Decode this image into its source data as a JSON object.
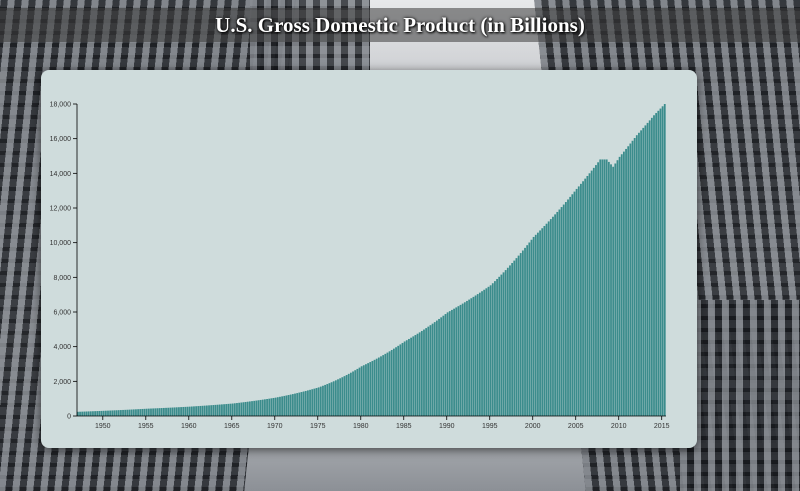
{
  "page": {
    "title": "U.S. Gross Domestic Product (in Billions)"
  },
  "colors": {
    "bar": "#3b8c8c",
    "card": "#cfdcdc",
    "axis": "#000000"
  },
  "chart_data": {
    "type": "bar",
    "title": "U.S. Gross Domestic Product (in Billions)",
    "xlabel": "",
    "ylabel": "",
    "xlim": [
      1947,
      2015.5
    ],
    "ylim": [
      0,
      18000
    ],
    "y_ticks": [
      0,
      2000,
      4000,
      6000,
      8000,
      10000,
      12000,
      14000,
      16000,
      18000
    ],
    "y_tick_labels": [
      "0",
      "2,000",
      "4,000",
      "6,000",
      "8,000",
      "10,000",
      "12,000",
      "14,000",
      "16,000",
      "18,000"
    ],
    "x_ticks": [
      1950,
      1955,
      1960,
      1965,
      1970,
      1975,
      1980,
      1985,
      1990,
      1995,
      2000,
      2005,
      2010,
      2015
    ],
    "x_tick_labels": [
      "1950",
      "1955",
      "1960",
      "1965",
      "1970",
      "1975",
      "1980",
      "1985",
      "1990",
      "1995",
      "2000",
      "2005",
      "2010",
      "2015"
    ],
    "frequency": "quarterly",
    "x": [
      1947,
      1950,
      1955,
      1960,
      1965,
      1970,
      1975,
      1980,
      1985,
      1990,
      1995,
      2000,
      2005,
      2007.75,
      2008.5,
      2009.25,
      2010,
      2012,
      2014,
      2015.25
    ],
    "values": [
      243,
      300,
      420,
      540,
      720,
      1060,
      1650,
      2870,
      4300,
      5980,
      7540,
      10330,
      13100,
      14800,
      14800,
      14380,
      14950,
      16200,
      17350,
      18000
    ]
  }
}
